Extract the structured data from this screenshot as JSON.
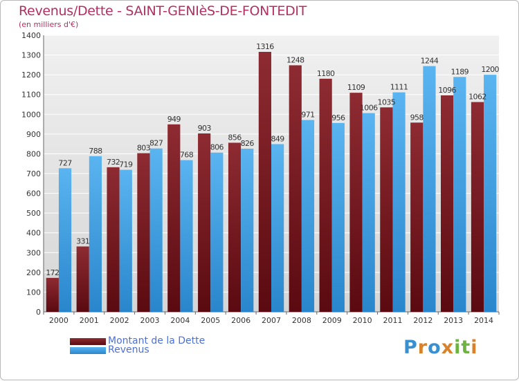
{
  "header": {
    "title": "Revenus/Dette - SAINT-GENIèS-DE-FONTEDIT",
    "subtitle": "(en milliers d'€)"
  },
  "legend": {
    "items": [
      {
        "label": "Montant de la Dette",
        "color": "#7a1a1f"
      },
      {
        "label": "Revenus",
        "color": "#3d9ee6"
      }
    ]
  },
  "logo": {
    "letters": [
      "P",
      "r",
      "o",
      "x",
      "i",
      "t",
      "i"
    ],
    "colors": [
      "#3a8fd0",
      "#d9822b",
      "#3a8fd0",
      "#d9822b",
      "#6cb33f",
      "#6cb33f",
      "#d9822b"
    ]
  },
  "chart_data": {
    "type": "bar",
    "categories": [
      "2000",
      "2001",
      "2002",
      "2003",
      "2004",
      "2005",
      "2006",
      "2007",
      "2008",
      "2009",
      "2010",
      "2011",
      "2012",
      "2013",
      "2014"
    ],
    "series": [
      {
        "name": "Montant de la Dette",
        "values": [
          172,
          331,
          732,
          803,
          949,
          903,
          856,
          1316,
          1248,
          1180,
          1109,
          1035,
          958,
          1096,
          1062
        ],
        "labels": [
          "172",
          "331",
          "732",
          "803",
          "949",
          "903",
          "856",
          "1316",
          "1248",
          "1180",
          "1109",
          "1035",
          "958",
          "1096",
          "1062"
        ],
        "color": "#7a1a1f"
      },
      {
        "name": "Revenus",
        "values": [
          727,
          788,
          719,
          827,
          768,
          806,
          826,
          849,
          971,
          956,
          1006,
          1111,
          1244,
          1189,
          1200
        ],
        "labels": [
          "727",
          "788",
          "719",
          "827",
          "768",
          "806",
          "826",
          "849",
          "971",
          "956",
          "1006",
          "1111",
          "1244",
          "1189",
          "1200"
        ],
        "color": "#3d9ee6"
      }
    ],
    "yticks": [
      "0",
      "100",
      "200",
      "300",
      "400",
      "500",
      "600",
      "700",
      "800",
      "900",
      "1000",
      "1100",
      "1200",
      "1300",
      "1400"
    ],
    "ylim": [
      0,
      1400
    ],
    "title": "Revenus/Dette - SAINT-GENIèS-DE-FONTEDIT",
    "xlabel": "",
    "ylabel": "",
    "grid": true,
    "legend_position": "bottom-left"
  }
}
